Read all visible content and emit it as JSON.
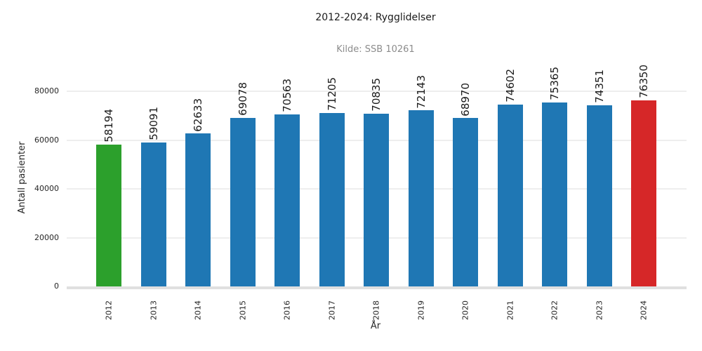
{
  "chart_data": {
    "type": "bar",
    "title": "2012-2024: Rygglidelser",
    "subtitle": "Kilde: SSB 10261",
    "xlabel": "År",
    "ylabel": "Antall pasienter",
    "categories": [
      "2012",
      "2013",
      "2014",
      "2015",
      "2016",
      "2017",
      "2018",
      "2019",
      "2020",
      "2021",
      "2022",
      "2023",
      "2024"
    ],
    "values": [
      58194,
      59091,
      62633,
      69078,
      70563,
      71205,
      70835,
      72143,
      68970,
      74602,
      75365,
      74351,
      76350
    ],
    "bar_colors": [
      "#2ca02c",
      "#1f77b4",
      "#1f77b4",
      "#1f77b4",
      "#1f77b4",
      "#1f77b4",
      "#1f77b4",
      "#1f77b4",
      "#1f77b4",
      "#1f77b4",
      "#1f77b4",
      "#1f77b4",
      "#d62728"
    ],
    "value_labels": [
      "58194",
      "59091",
      "62633",
      "69078",
      "70563",
      "71205",
      "70835",
      "72143",
      "68970",
      "74602",
      "75365",
      "74351",
      "76350"
    ],
    "yticks": [
      0,
      20000,
      40000,
      60000,
      80000
    ],
    "ytick_labels": [
      "0",
      "20000",
      "40000",
      "60000",
      "80000"
    ],
    "ylim": [
      0,
      85700
    ],
    "grid": "horizontal-only",
    "legend": "none",
    "colors": {
      "highlight_first_bar": "#2ca02c",
      "default_bar": "#1f77b4",
      "highlight_last_bar": "#d62728",
      "gridline": "#eeeeee",
      "axis_line": "#e0e0e0",
      "text": "#262626",
      "subtitle_text": "#8c8c8c",
      "background": "#ffffff"
    }
  }
}
